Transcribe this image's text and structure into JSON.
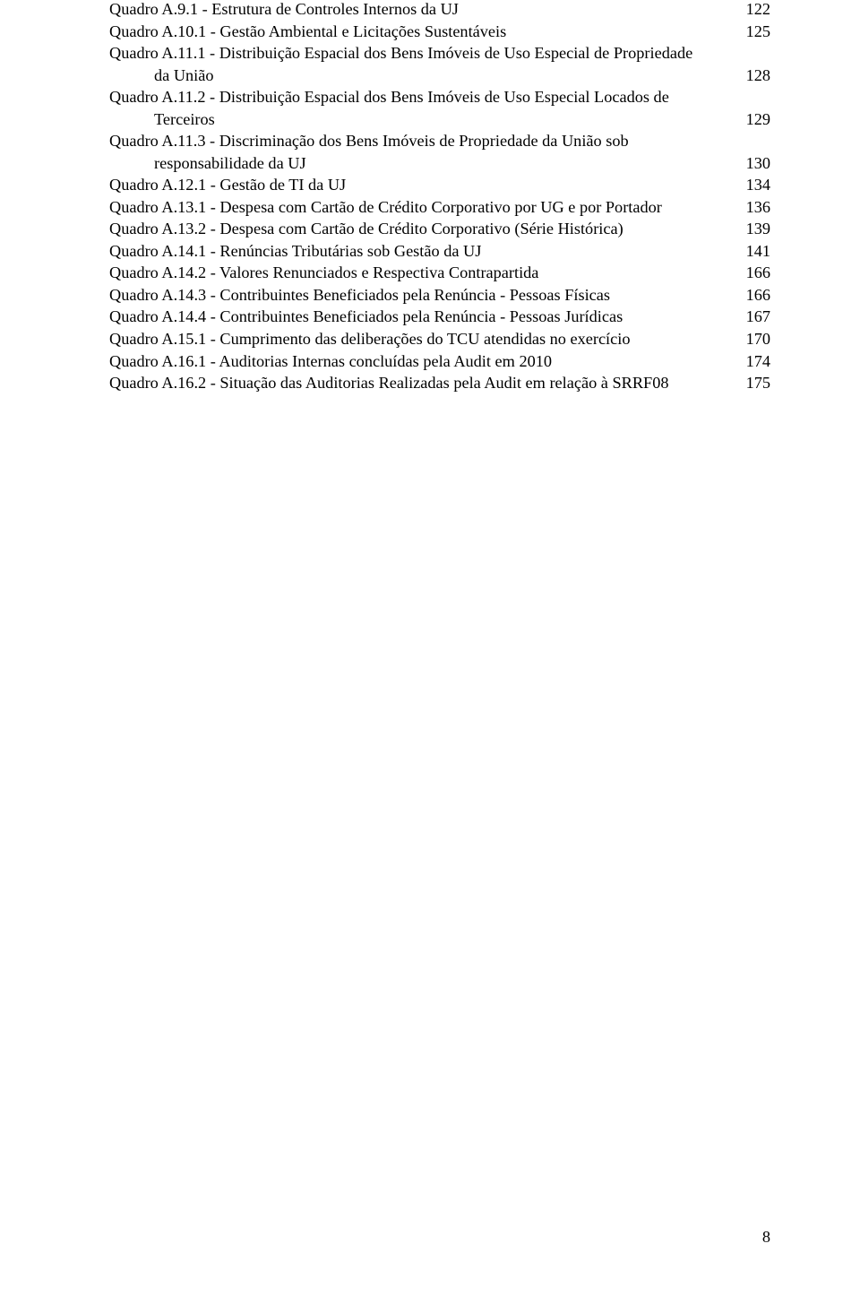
{
  "font": {
    "family": "Times New Roman",
    "size_pt": 12,
    "color": "#000000"
  },
  "background_color": "#ffffff",
  "entries": [
    {
      "kind": "simple",
      "label": "Quadro A.9.1 - Estrutura de Controles Internos da UJ",
      "page": "122"
    },
    {
      "kind": "simple",
      "label": "Quadro A.10.1 - Gestão Ambiental e Licitações Sustentáveis",
      "page": "125"
    },
    {
      "kind": "two-line",
      "line1": "Quadro A.11.1 - Distribuição Espacial dos Bens Imóveis de Uso Especial de Propriedade",
      "line2": "da União",
      "page": "128"
    },
    {
      "kind": "two-line",
      "line1": "Quadro A.11.2 - Distribuição Espacial dos Bens Imóveis de Uso Especial Locados de",
      "line2": "Terceiros",
      "page": "129"
    },
    {
      "kind": "two-line",
      "line1": "Quadro A.11.3 - Discriminação dos Bens Imóveis de Propriedade da União sob",
      "line2": "responsabilidade da UJ",
      "page": "130"
    },
    {
      "kind": "simple",
      "label": "Quadro A.12.1 - Gestão de TI da UJ",
      "page": "134"
    },
    {
      "kind": "simple",
      "label": "Quadro A.13.1 - Despesa com Cartão de Crédito Corporativo por UG e por Portador",
      "page": "136"
    },
    {
      "kind": "simple",
      "label": "Quadro A.13.2 - Despesa com Cartão de Crédito Corporativo (Série Histórica)",
      "page": "139"
    },
    {
      "kind": "simple",
      "label": "Quadro A.14.1 - Renúncias Tributárias sob Gestão da UJ",
      "page": "141"
    },
    {
      "kind": "simple",
      "label": "Quadro A.14.2 - Valores Renunciados e Respectiva Contrapartida",
      "page": "166"
    },
    {
      "kind": "simple",
      "label": "Quadro A.14.3 - Contribuintes Beneficiados pela Renúncia - Pessoas Físicas",
      "page": "166"
    },
    {
      "kind": "simple",
      "label": "Quadro A.14.4 - Contribuintes Beneficiados pela Renúncia - Pessoas Jurídicas",
      "page": "167"
    },
    {
      "kind": "simple",
      "label": "Quadro A.15.1 - Cumprimento das deliberações do TCU atendidas no exercício",
      "page": "170"
    },
    {
      "kind": "simple",
      "label": "Quadro A.16.1 - Auditorias Internas concluídas pela Audit em 2010",
      "page": "174"
    },
    {
      "kind": "simple",
      "label": "Quadro A.16.2 - Situação das Auditorias Realizadas pela Audit em relação à SRRF08",
      "page": "175"
    }
  ],
  "page_number": "8"
}
